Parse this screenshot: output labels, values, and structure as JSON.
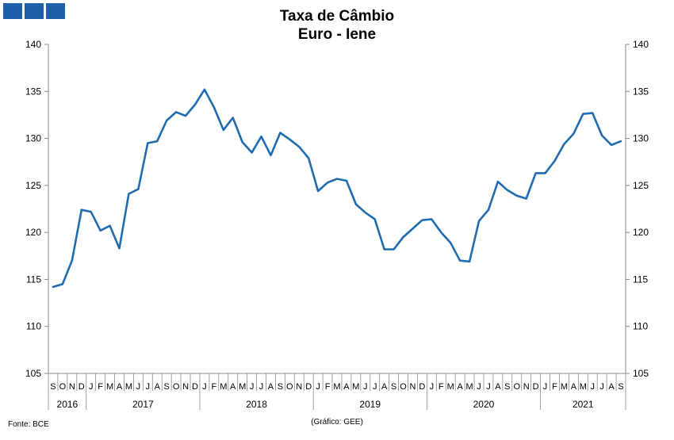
{
  "logo": {
    "squares": 3,
    "color": "#1f5fa9"
  },
  "footer": {
    "source": "Fonte: BCE",
    "credit": "(Gráfico: GEE)"
  },
  "chart_data": {
    "type": "line",
    "title": "Taxa de Câmbio",
    "subtitle": "Euro - Iene",
    "xlabel": "",
    "ylabel": "",
    "ylim": [
      105,
      140
    ],
    "yticks": [
      105,
      110,
      115,
      120,
      125,
      130,
      135,
      140
    ],
    "right_axis_mirror": true,
    "grid": false,
    "legend": "none",
    "line_color": "#1f6bb0",
    "month_labels": [
      "S",
      "O",
      "N",
      "D",
      "J",
      "F",
      "M",
      "A",
      "M",
      "J",
      "J",
      "A",
      "S",
      "O",
      "N",
      "D",
      "J",
      "F",
      "M",
      "A",
      "M",
      "J",
      "J",
      "A",
      "S",
      "O",
      "N",
      "D",
      "J",
      "F",
      "M",
      "A",
      "M",
      "J",
      "J",
      "A",
      "S",
      "O",
      "N",
      "D",
      "J",
      "F",
      "M",
      "A",
      "M",
      "J",
      "J",
      "A",
      "S",
      "O",
      "N",
      "D",
      "J",
      "F",
      "M",
      "A",
      "M",
      "J",
      "J",
      "A",
      "S"
    ],
    "year_groups": [
      {
        "label": "2016",
        "months": 4
      },
      {
        "label": "2017",
        "months": 12
      },
      {
        "label": "2018",
        "months": 12
      },
      {
        "label": "2019",
        "months": 12
      },
      {
        "label": "2020",
        "months": 12
      },
      {
        "label": "2021",
        "months": 9
      }
    ],
    "series": [
      {
        "values": [
          114.2,
          114.5,
          117.0,
          122.4,
          122.2,
          120.2,
          120.7,
          118.3,
          124.1,
          124.6,
          129.5,
          129.7,
          131.9,
          132.8,
          132.4,
          133.6,
          135.2,
          133.3,
          130.9,
          132.2,
          129.6,
          128.5,
          130.2,
          128.2,
          130.6,
          129.9,
          129.1,
          127.9,
          124.4,
          125.3,
          125.7,
          125.5,
          123.0,
          122.1,
          121.4,
          118.2,
          118.2,
          119.5,
          120.4,
          121.3,
          121.4,
          120.0,
          118.9,
          117.0,
          116.9,
          121.2,
          122.4,
          125.4,
          124.5,
          123.9,
          123.6,
          126.3,
          126.3,
          127.6,
          129.4,
          130.5,
          132.6,
          132.7,
          130.3,
          129.3,
          129.7
        ]
      }
    ]
  }
}
